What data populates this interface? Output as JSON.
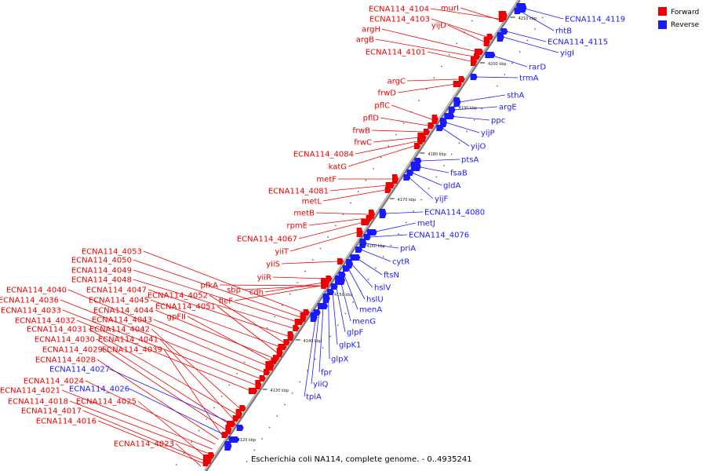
{
  "caption": "Escherichia coli NA114, complete genome. - 0..4935241",
  "legend": [
    {
      "label": "Forward",
      "color": "#ee0000"
    },
    {
      "label": "Reverse",
      "color": "#1a1aff"
    }
  ],
  "colors": {
    "forward": "#ee0000",
    "reverse": "#1a1aff",
    "axis": "#999999"
  },
  "axis_ticks": [
    "4120 kbp",
    "4130 kbp",
    "4140 kbp",
    "4150 kbp",
    "4160 kbp",
    "4170 kbp",
    "4180 kbp",
    "4190 kbp",
    "4200 kbp",
    "4210 kbp"
  ],
  "forward_labels": [
    "murI",
    "ECNA114_4104",
    "ECNA114_4103",
    "yijD",
    "argH",
    "argB",
    "ECNA114_4101",
    "argC",
    "frwD",
    "pflC",
    "pflD",
    "frwB",
    "frwC",
    "ECNA114_4084",
    "katG",
    "metF",
    "ECNA114_4081",
    "metL",
    "metB",
    "rpmE",
    "ECNA114_4067",
    "yiiT",
    "yiiS",
    "yiiR",
    "cdh",
    "sbp",
    "pfkA",
    "fieF",
    "ECNA114_4053",
    "ECNA114_4050",
    "ECNA114_4049",
    "ECNA114_4048",
    "ECNA114_4047",
    "ECNA114_4052",
    "ECNA114_4045",
    "ECNA114_4051",
    "ECNA114_4044",
    "gpFII",
    "ECNA114_4043",
    "ECNA114_4040",
    "ECNA114_4036",
    "ECNA114_4033",
    "ECNA114_4032",
    "ECNA114_4042",
    "ECNA114_4031",
    "ECNA114_4041",
    "ECNA114_4030",
    "ECNA114_4029",
    "ECNA114_4039",
    "ECNA114_4028",
    "ECNA114_4024",
    "ECNA114_4021",
    "ECNA114_4018",
    "ECNA114_4025",
    "ECNA114_4017",
    "ECNA114_4016",
    "ECNA114_4023"
  ],
  "reverse_labels": [
    "ECNA114_4119",
    "rhtB",
    "ECNA114_4115",
    "yigI",
    "rarD",
    "trmA",
    "sthA",
    "argE",
    "ppc",
    "yijP",
    "yijO",
    "ptsA",
    "fsaB",
    "gldA",
    "yijF",
    "ECNA114_4080",
    "metJ",
    "ECNA114_4076",
    "priA",
    "cytR",
    "ftsN",
    "hslV",
    "hslU",
    "menA",
    "menG",
    "glpF",
    "glpK1",
    "glpX",
    "fpr",
    "yiiQ",
    "tpiA",
    "ECNA114_4027",
    "ECNA114_4026"
  ]
}
